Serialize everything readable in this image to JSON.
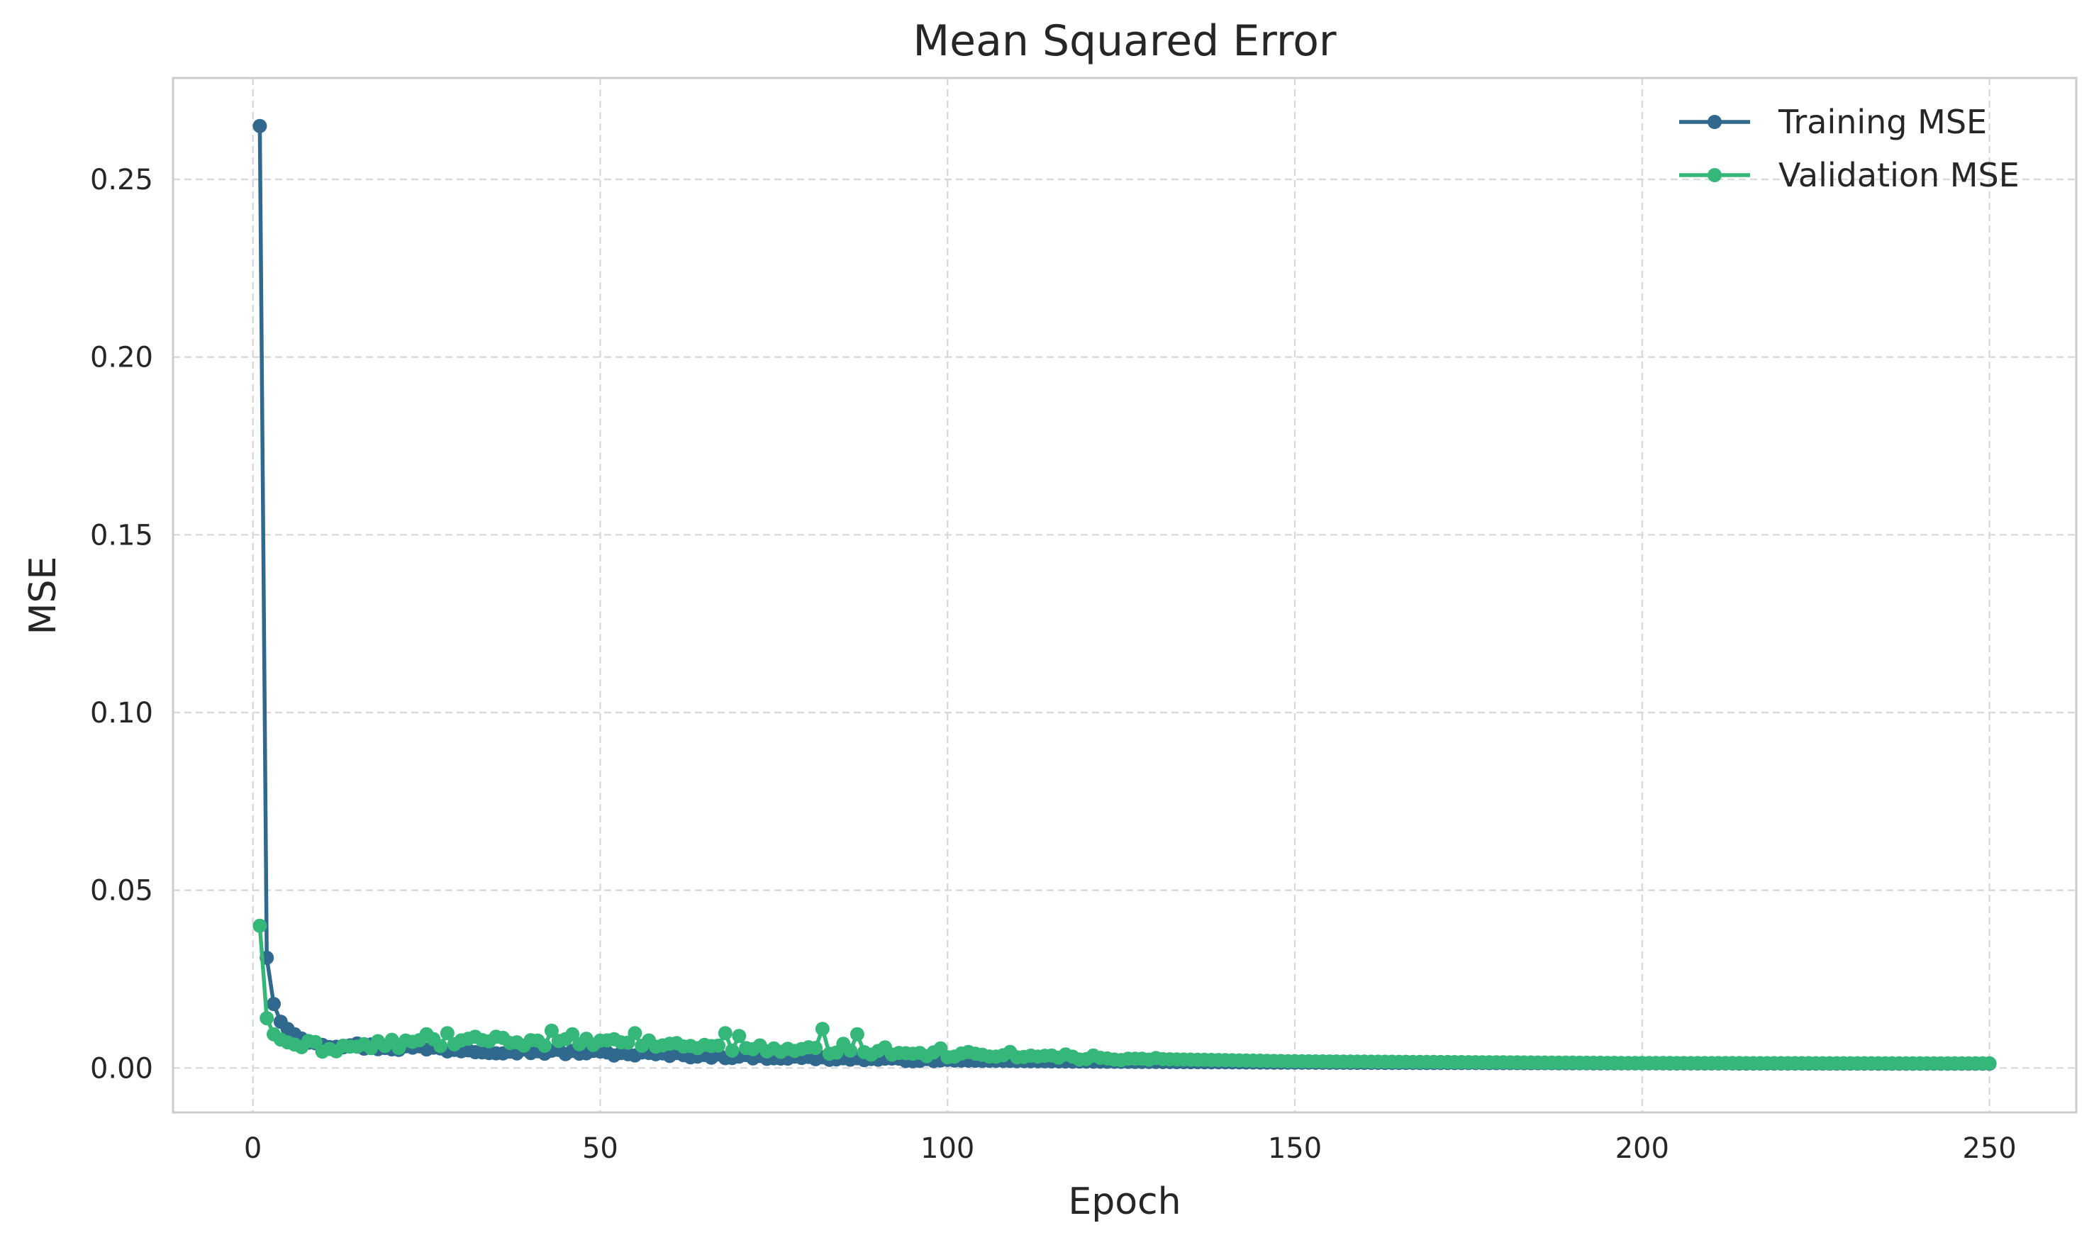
{
  "chart_data": {
    "type": "line",
    "title": "Mean Squared Error",
    "xlabel": "Epoch",
    "ylabel": "MSE",
    "xlim": [
      -11.5,
      262.5
    ],
    "ylim": [
      -0.0125,
      0.2785
    ],
    "xticks": [
      0,
      50,
      100,
      150,
      200,
      250
    ],
    "xtick_labels": [
      "0",
      "50",
      "100",
      "150",
      "200",
      "250"
    ],
    "yticks": [
      0.0,
      0.05,
      0.1,
      0.15,
      0.2,
      0.25
    ],
    "ytick_labels": [
      "0.00",
      "0.05",
      "0.10",
      "0.15",
      "0.20",
      "0.25"
    ],
    "grid": true,
    "legend_position": "top-right",
    "series": [
      {
        "name": "Training MSE",
        "color": "#31688e",
        "x_range": [
          1,
          250
        ],
        "y_keypoints": [
          [
            1,
            0.265
          ],
          [
            2,
            0.031
          ],
          [
            3,
            0.018
          ],
          [
            4,
            0.013
          ],
          [
            5,
            0.011
          ],
          [
            6,
            0.0095
          ],
          [
            8,
            0.008
          ],
          [
            10,
            0.007
          ],
          [
            15,
            0.0062
          ],
          [
            20,
            0.0058
          ],
          [
            30,
            0.0052
          ],
          [
            40,
            0.0047
          ],
          [
            50,
            0.0042
          ],
          [
            60,
            0.0037
          ],
          [
            70,
            0.0032
          ],
          [
            80,
            0.0028
          ],
          [
            90,
            0.0024
          ],
          [
            100,
            0.0021
          ],
          [
            120,
            0.0018
          ],
          [
            150,
            0.0015
          ],
          [
            200,
            0.0013
          ],
          [
            250,
            0.0012
          ]
        ],
        "noise_until_epoch": 100
      },
      {
        "name": "Validation MSE",
        "color": "#35b779",
        "x_range": [
          1,
          250
        ],
        "y_keypoints": [
          [
            1,
            0.04
          ],
          [
            2,
            0.014
          ],
          [
            3,
            0.0095
          ],
          [
            4,
            0.008
          ],
          [
            5,
            0.0072
          ],
          [
            6,
            0.0066
          ],
          [
            8,
            0.0062
          ],
          [
            10,
            0.0058
          ],
          [
            15,
            0.006
          ],
          [
            20,
            0.0068
          ],
          [
            30,
            0.0075
          ],
          [
            40,
            0.0075
          ],
          [
            50,
            0.0072
          ],
          [
            60,
            0.0065
          ],
          [
            70,
            0.0057
          ],
          [
            80,
            0.005
          ],
          [
            90,
            0.0043
          ],
          [
            100,
            0.0037
          ],
          [
            120,
            0.0028
          ],
          [
            150,
            0.0019
          ],
          [
            200,
            0.0014
          ],
          [
            250,
            0.0013
          ]
        ],
        "noise_until_epoch": 130,
        "spikes": [
          [
            25,
            0.0095
          ],
          [
            28,
            0.0098
          ],
          [
            35,
            0.0088
          ],
          [
            43,
            0.0105
          ],
          [
            46,
            0.0095
          ],
          [
            55,
            0.0098
          ],
          [
            68,
            0.0098
          ],
          [
            70,
            0.009
          ],
          [
            82,
            0.011
          ],
          [
            85,
            0.0068
          ],
          [
            87,
            0.0095
          ],
          [
            91,
            0.0058
          ],
          [
            99,
            0.0055
          ],
          [
            103,
            0.0045
          ],
          [
            109,
            0.0045
          ],
          [
            117,
            0.0038
          ],
          [
            121,
            0.0035
          ]
        ]
      }
    ]
  }
}
